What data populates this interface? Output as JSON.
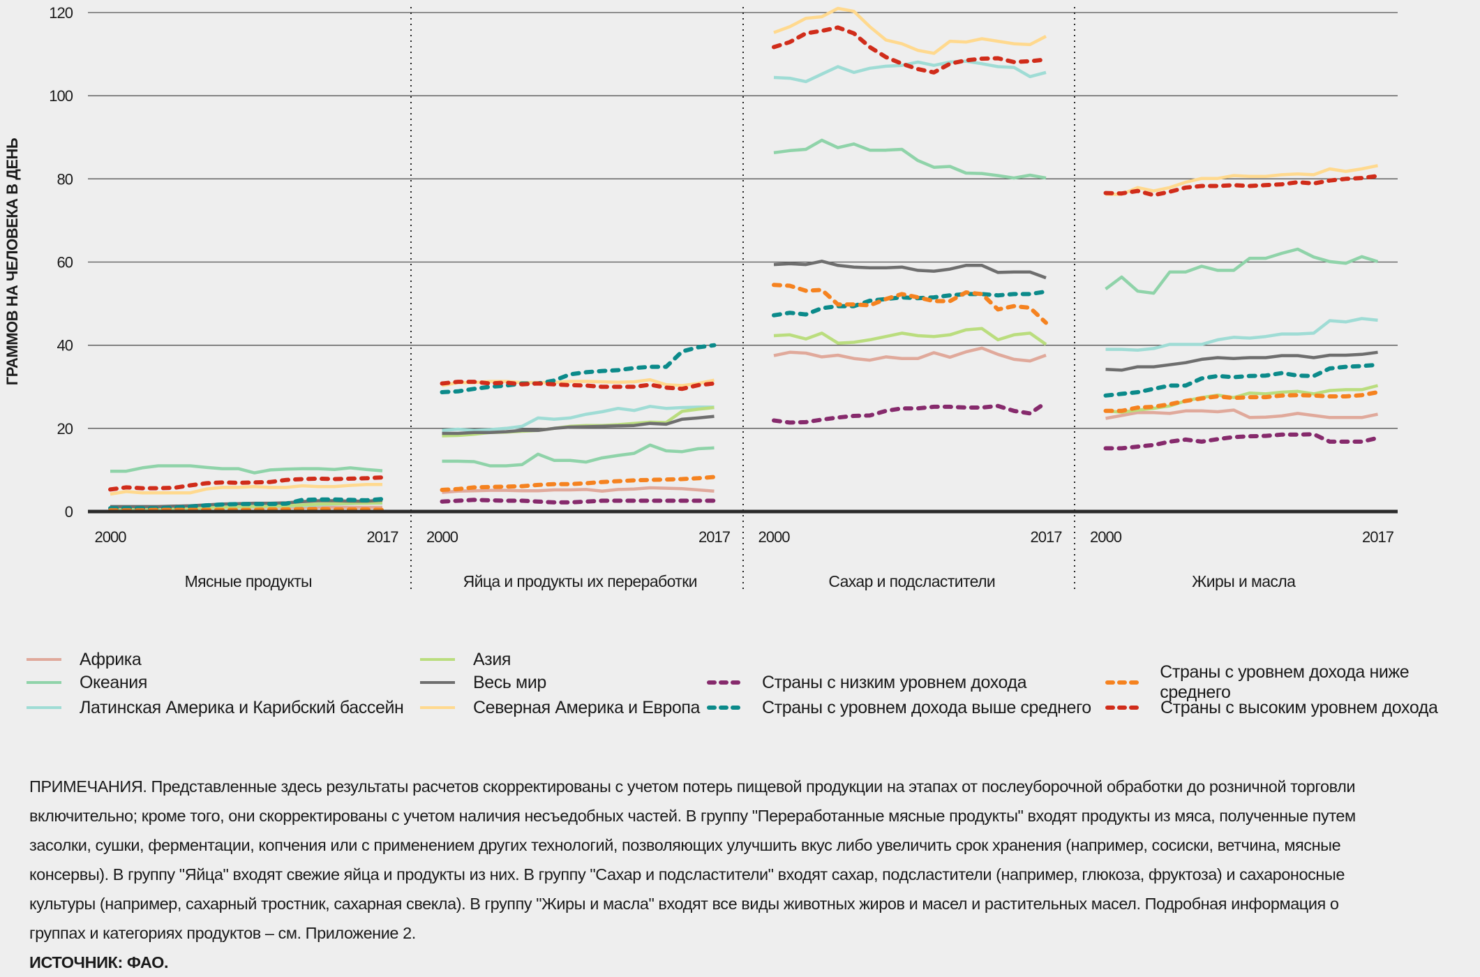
{
  "chart_data": {
    "type": "line",
    "ylabel": "ГРАММОВ НА ЧЕЛОВЕКА В ДЕНЬ",
    "ylim": [
      0,
      120
    ],
    "yticks": [
      0,
      20,
      40,
      60,
      80,
      100,
      120
    ],
    "grid": true,
    "legend_position": "bottom",
    "x": [
      2000,
      2001,
      2002,
      2003,
      2004,
      2005,
      2006,
      2007,
      2008,
      2009,
      2010,
      2011,
      2012,
      2013,
      2014,
      2015,
      2016,
      2017
    ],
    "xtick_labels": [
      "2000",
      "2017"
    ],
    "series_meta": [
      {
        "key": "africa",
        "name": "Африка",
        "color": "#e0a99b",
        "dashed": false
      },
      {
        "key": "oceania",
        "name": "Океания",
        "color": "#8fd3a9",
        "dashed": false
      },
      {
        "key": "latam",
        "name": "Латинская Америка и Карибский бассейн",
        "color": "#9fdcd5",
        "dashed": false
      },
      {
        "key": "asia",
        "name": "Азия",
        "color": "#badd7e",
        "dashed": false
      },
      {
        "key": "world",
        "name": "Весь мир",
        "color": "#6e6e6e",
        "dashed": false
      },
      {
        "key": "na_eu",
        "name": "Северная Америка и Европа",
        "color": "#ffd98e",
        "dashed": false
      },
      {
        "key": "low",
        "name": "Страны с низким уровнем дохода",
        "color": "#862a6c",
        "dashed": true
      },
      {
        "key": "upper_mid",
        "name": "Страны с уровнем дохода выше среднего",
        "color": "#0b8a8a",
        "dashed": true
      },
      {
        "key": "lower_mid",
        "name": "Страны с уровнем дохода ниже среднего",
        "color": "#f5821f",
        "dashed": true
      },
      {
        "key": "high",
        "name": "Страны с высоким уровнем дохода",
        "color": "#d02c1a",
        "dashed": true
      }
    ],
    "panels": [
      {
        "name": "Мясные продукты",
        "series": {
          "africa": [
            1,
            1,
            1,
            1,
            1,
            1,
            1,
            1,
            1,
            1,
            1,
            1,
            1,
            1,
            1,
            1,
            1,
            1
          ],
          "oceania": [
            9.7,
            9.7,
            10.5,
            11,
            11,
            11,
            10.6,
            10.3,
            10.3,
            9.3,
            10,
            10.2,
            10.3,
            10.3,
            10.1,
            10.5,
            10.1,
            9.8
          ],
          "latam": [
            0.8,
            0.8,
            0.8,
            0.8,
            0.8,
            0.9,
            1,
            1,
            1,
            1.1,
            1.2,
            1.3,
            1.4,
            1.6,
            1.8,
            1.9,
            2,
            2
          ],
          "asia": [
            0.5,
            0.5,
            0.5,
            0.6,
            0.7,
            0.8,
            0.9,
            1,
            1.1,
            1.2,
            1.3,
            1.4,
            1.6,
            1.8,
            1.9,
            2,
            2,
            2.1
          ],
          "world": [
            1.2,
            1.2,
            1.2,
            1.2,
            1.3,
            1.4,
            1.6,
            1.8,
            1.9,
            2,
            2,
            2.1,
            2.4,
            2.6,
            2.6,
            2.5,
            2.5,
            2.7
          ],
          "na_eu": [
            4.2,
            4.8,
            4.5,
            4.5,
            4.5,
            4.5,
            5.4,
            5.8,
            5.8,
            6,
            5.8,
            5.8,
            6.2,
            6,
            6,
            6.3,
            6.5,
            6.5
          ],
          "low": [
            0.2,
            0.2,
            0.2,
            0.2,
            0.2,
            0.2,
            0.2,
            0.2,
            0.2,
            0.2,
            0.2,
            0.2,
            0.2,
            0.2,
            0.2,
            0.2,
            0.2,
            0.2
          ],
          "upper_mid": [
            0.8,
            0.8,
            0.8,
            0.8,
            0.9,
            1.2,
            1.5,
            1.7,
            1.8,
            1.8,
            1.8,
            1.9,
            2.8,
            2.9,
            2.9,
            2.8,
            2.7,
            3
          ],
          "lower_mid": [
            0.3,
            0.3,
            0.3,
            0.4,
            0.4,
            0.4,
            0.4,
            0.4,
            0.4,
            0.4,
            0.5,
            0.5,
            0.6,
            0.6,
            0.5,
            0.5,
            0.5,
            0.4
          ],
          "high": [
            5.3,
            5.8,
            5.6,
            5.6,
            5.7,
            6.3,
            6.8,
            7,
            6.9,
            7,
            7.1,
            7.6,
            7.8,
            7.9,
            7.8,
            7.9,
            8,
            8.2
          ]
        }
      },
      {
        "name": "Яйца и продукты их переработки",
        "series": {
          "africa": [
            4.6,
            4.9,
            5,
            5.1,
            5.1,
            5,
            5,
            5.2,
            5.2,
            5.3,
            4.9,
            5.3,
            5.4,
            5.7,
            5.6,
            5.5,
            5.2,
            4.9
          ],
          "oceania": [
            12.1,
            12.1,
            12,
            11,
            11,
            11.3,
            13.8,
            12.3,
            12.3,
            11.9,
            12.9,
            13.5,
            14,
            16,
            14.6,
            14.4,
            15.1,
            15.3
          ],
          "latam": [
            19.5,
            19.8,
            19.5,
            19.7,
            20,
            20.5,
            22.5,
            22.2,
            22.5,
            23.4,
            24,
            24.8,
            24.3,
            25.3,
            24.8,
            25,
            25.1,
            25.1
          ],
          "asia": [
            18.2,
            18.3,
            18.6,
            19,
            19.1,
            19.3,
            19.5,
            20,
            20.5,
            20.7,
            20.7,
            20.9,
            21.2,
            21.5,
            21.4,
            24.1,
            24.6,
            25
          ],
          "world": [
            18.8,
            18.8,
            19,
            19,
            19.2,
            19.5,
            19.5,
            20,
            20.3,
            20.4,
            20.5,
            20.6,
            20.7,
            21.2,
            21,
            22.2,
            22.5,
            22.9
          ],
          "na_eu": [
            30.3,
            31,
            31,
            31.3,
            31.3,
            31,
            31,
            31,
            31.3,
            31.3,
            31.2,
            31.1,
            31.2,
            31.7,
            30.5,
            30.3,
            30.8,
            31.6
          ],
          "low": [
            2.4,
            2.6,
            2.8,
            2.7,
            2.6,
            2.6,
            2.4,
            2.2,
            2.2,
            2.4,
            2.6,
            2.6,
            2.6,
            2.6,
            2.6,
            2.6,
            2.6,
            2.6
          ],
          "upper_mid": [
            28.7,
            28.9,
            29.5,
            30,
            30.3,
            30.8,
            30.8,
            31.5,
            33,
            33.5,
            33.8,
            34,
            34.5,
            34.8,
            34.8,
            38.5,
            39.5,
            40
          ],
          "lower_mid": [
            5.2,
            5.4,
            5.8,
            5.9,
            6,
            6.1,
            6.4,
            6.6,
            6.6,
            6.8,
            7.1,
            7.3,
            7.5,
            7.6,
            7.7,
            7.8,
            8,
            8.3
          ],
          "high": [
            30.8,
            31.2,
            31.2,
            30.8,
            31,
            30.6,
            30.8,
            30.6,
            30.4,
            30.3,
            30,
            30,
            30,
            30.5,
            29.8,
            29.5,
            30.4,
            30.8
          ]
        }
      },
      {
        "name": "Сахар и подсластители",
        "series": {
          "africa": [
            37.5,
            38.3,
            38.1,
            37.2,
            37.6,
            36.8,
            36.4,
            37.2,
            36.8,
            36.8,
            38.2,
            37.1,
            38.4,
            39.3,
            37.8,
            36.6,
            36.2,
            37.6
          ],
          "oceania": [
            86.3,
            86.8,
            87.1,
            89.3,
            87.5,
            88.4,
            86.9,
            86.9,
            87.1,
            84.4,
            82.8,
            83,
            81.4,
            81.3,
            80.8,
            80.2,
            80.9,
            80.2
          ],
          "latam": [
            104.4,
            104.2,
            103.4,
            105.2,
            107,
            105.6,
            106.6,
            107.1,
            107.3,
            108.1,
            107.3,
            108.1,
            108.3,
            107.7,
            107,
            106.8,
            104.6,
            105.6
          ],
          "asia": [
            42.3,
            42.5,
            41.5,
            42.9,
            40.5,
            40.7,
            41.3,
            42.1,
            42.9,
            42.3,
            42.1,
            42.5,
            43.7,
            44,
            41.3,
            42.5,
            42.9,
            40.2
          ],
          "world": [
            59.4,
            59.6,
            59.4,
            60.2,
            59.2,
            58.8,
            58.6,
            58.6,
            58.8,
            58,
            57.8,
            58.3,
            59.2,
            59.2,
            57.5,
            57.6,
            57.6,
            56.2
          ],
          "na_eu": [
            115.2,
            116.6,
            118.6,
            119,
            121,
            120.3,
            116.6,
            113.4,
            112.5,
            110.9,
            110.2,
            113.1,
            112.9,
            113.7,
            113.1,
            112.5,
            112.3,
            114.3
          ],
          "low": [
            21.9,
            21.4,
            21.5,
            22.1,
            22.6,
            23,
            23.1,
            24.2,
            24.8,
            24.8,
            25.2,
            25.2,
            25,
            25,
            25.4,
            24.2,
            23.6,
            26.2
          ],
          "upper_mid": [
            47.2,
            47.8,
            47.4,
            48.9,
            49.4,
            49.4,
            50.7,
            51.1,
            51.5,
            51.3,
            51.5,
            52,
            52.3,
            52.3,
            52,
            52.3,
            52.3,
            52.9
          ],
          "lower_mid": [
            54.5,
            54.3,
            53.1,
            53.3,
            49.8,
            49.8,
            49.6,
            51.1,
            52.3,
            51.5,
            50.6,
            50.6,
            52.7,
            52.3,
            48.6,
            49.4,
            49,
            45.4
          ],
          "high": [
            111.7,
            112.9,
            115,
            115.6,
            116.4,
            115,
            111.7,
            109.3,
            107.7,
            106.4,
            105.6,
            107.7,
            108.5,
            108.9,
            109,
            108.1,
            108.3,
            108.7
          ]
        }
      },
      {
        "name": "Жиры и масла",
        "series": {
          "africa": [
            22.4,
            23.1,
            23.8,
            23.8,
            23.6,
            24.2,
            24.2,
            24,
            24.4,
            22.6,
            22.7,
            23,
            23.6,
            23.1,
            22.6,
            22.6,
            22.6,
            23.4
          ],
          "oceania": [
            53.5,
            56.4,
            53,
            52.5,
            57.6,
            57.6,
            59,
            58,
            58,
            60.9,
            60.9,
            62.1,
            63.1,
            61.2,
            60.1,
            59.7,
            61.3,
            60.1
          ],
          "latam": [
            39,
            39,
            38.8,
            39.2,
            40.2,
            40.2,
            40.2,
            41.3,
            41.9,
            41.7,
            42.1,
            42.7,
            42.7,
            42.9,
            45.9,
            45.6,
            46.4,
            46
          ],
          "asia": [
            24.2,
            23.9,
            24.4,
            24.8,
            25.4,
            26.6,
            27.4,
            28,
            27.4,
            28.5,
            28.3,
            28.7,
            28.9,
            28.3,
            29.1,
            29.3,
            29.3,
            30.3
          ],
          "world": [
            34.2,
            34,
            34.8,
            34.8,
            35.3,
            35.8,
            36.6,
            37,
            36.8,
            37,
            37,
            37.5,
            37.5,
            37,
            37.6,
            37.6,
            37.8,
            38.3
          ],
          "na_eu": [
            76.3,
            76.3,
            77.9,
            77.1,
            77.9,
            79.2,
            80.1,
            80.1,
            80.8,
            80.6,
            80.6,
            81,
            81.2,
            81,
            82.4,
            81.8,
            82.4,
            83.2
          ],
          "low": [
            15.2,
            15.2,
            15.6,
            16,
            16.8,
            17.3,
            16.8,
            17.4,
            17.9,
            18.1,
            18.2,
            18.5,
            18.5,
            18.6,
            16.8,
            16.8,
            16.8,
            17.7
          ],
          "upper_mid": [
            27.9,
            28.3,
            28.7,
            29.5,
            30.3,
            30.3,
            32,
            32.6,
            32.3,
            32.6,
            32.7,
            33.3,
            32.7,
            32.6,
            34.4,
            34.8,
            35,
            35.3
          ],
          "lower_mid": [
            24.2,
            24.2,
            25,
            25.2,
            25.8,
            26.6,
            27.2,
            27.7,
            27.3,
            27.5,
            27.5,
            27.9,
            28,
            27.9,
            27.7,
            27.7,
            28,
            28.7
          ],
          "high": [
            76.6,
            76.5,
            77.1,
            76.1,
            76.9,
            77.9,
            78.3,
            78.3,
            78.5,
            78.3,
            78.5,
            78.7,
            79.2,
            78.9,
            79.6,
            80,
            80.2,
            80.7
          ]
        }
      }
    ]
  },
  "notes": [
    "ПРИМЕЧАНИЯ. Представленные здесь результаты расчетов скорректированы с учетом потерь пищевой продукции на этапах от послеуборочной обработки до розничной торговли",
    "включительно; кроме того, они скорректированы с учетом наличия несъедобных частей. В группу \"Переработанные мясные продукты\" входят продукты из мяса, полученные путем",
    "засолки, сушки, ферментации, копчения или с применением других технологий, позволяющих улучшить вкус либо увеличить срок хранения (например, сосиски, ветчина, мясные",
    "консервы). В группу \"Яйца\" входят свежие яйца и продукты из них. В группу \"Сахар и подсластители\" входят сахар, подсластители (например, глюкоза, фруктоза) и сахароносные",
    "культуры (например, сахарный тростник, сахарная свекла). В группу \"Жиры и масла\" входят все виды животных жиров и масел и растительных масел. Подробная информация о",
    "группах и категориях продуктов – см. Приложение 2."
  ],
  "source": "ИСТОЧНИК: ФАО."
}
